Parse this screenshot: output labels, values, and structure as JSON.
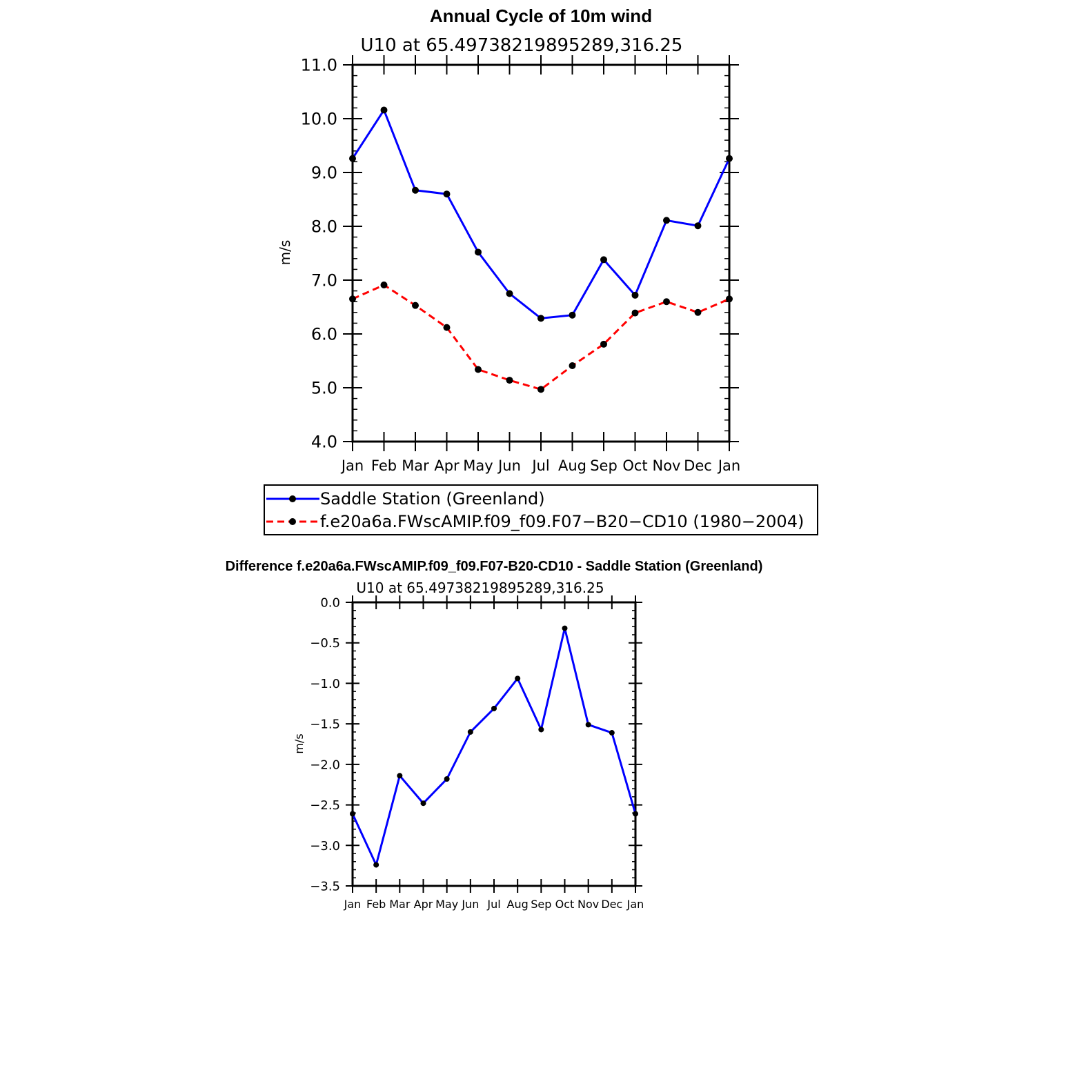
{
  "chart_data": [
    {
      "type": "line",
      "title": "Annual Cycle of 10m wind",
      "subtitle": "U10 at 65.49738219895289,316.25",
      "ylabel": "m/s",
      "xlabel": "",
      "categories": [
        "Jan",
        "Feb",
        "Mar",
        "Apr",
        "May",
        "Jun",
        "Jul",
        "Aug",
        "Sep",
        "Oct",
        "Nov",
        "Dec",
        "Jan"
      ],
      "ylim": [
        4.0,
        11.0
      ],
      "yticks": [
        "4.0",
        "5.0",
        "6.0",
        "7.0",
        "8.0",
        "9.0",
        "10.0",
        "11.0"
      ],
      "legend_position": "bottom",
      "series": [
        {
          "name": "Saddle Station (Greenland)",
          "color": "#0000ff",
          "dash": "solid",
          "values": [
            9.26,
            10.16,
            8.67,
            8.6,
            7.52,
            6.75,
            6.29,
            6.35,
            7.38,
            6.72,
            8.11,
            8.01,
            9.26
          ]
        },
        {
          "name": "f.e20a6a.FWscAMIP.f09_f09.F07−B20−CD10 (1980−2004)",
          "color": "#ff0000",
          "dash": "dashed",
          "values": [
            6.65,
            6.91,
            6.53,
            6.12,
            5.34,
            5.14,
            4.97,
            5.41,
            5.81,
            6.39,
            6.6,
            6.4,
            6.65
          ]
        }
      ]
    },
    {
      "type": "line",
      "title": "Difference f.e20a6a.FWscAMIP.f09_f09.F07-B20-CD10 - Saddle Station (Greenland)",
      "subtitle": "U10 at 65.49738219895289,316.25",
      "ylabel": "m/s",
      "xlabel": "",
      "categories": [
        "Jan",
        "Feb",
        "Mar",
        "Apr",
        "May",
        "Jun",
        "Jul",
        "Aug",
        "Sep",
        "Oct",
        "Nov",
        "Dec",
        "Jan"
      ],
      "ylim": [
        -3.5,
        0.0
      ],
      "yticks": [
        "−3.5",
        "−3.0",
        "−2.5",
        "−2.0",
        "−1.5",
        "−1.0",
        "−0.5",
        "0.0"
      ],
      "series": [
        {
          "color": "#0000ff",
          "dash": "solid",
          "values": [
            -2.61,
            -3.24,
            -2.14,
            -2.48,
            -2.18,
            -1.6,
            -1.31,
            -0.94,
            -1.57,
            -0.32,
            -1.51,
            -1.61,
            -2.61
          ]
        }
      ]
    }
  ]
}
